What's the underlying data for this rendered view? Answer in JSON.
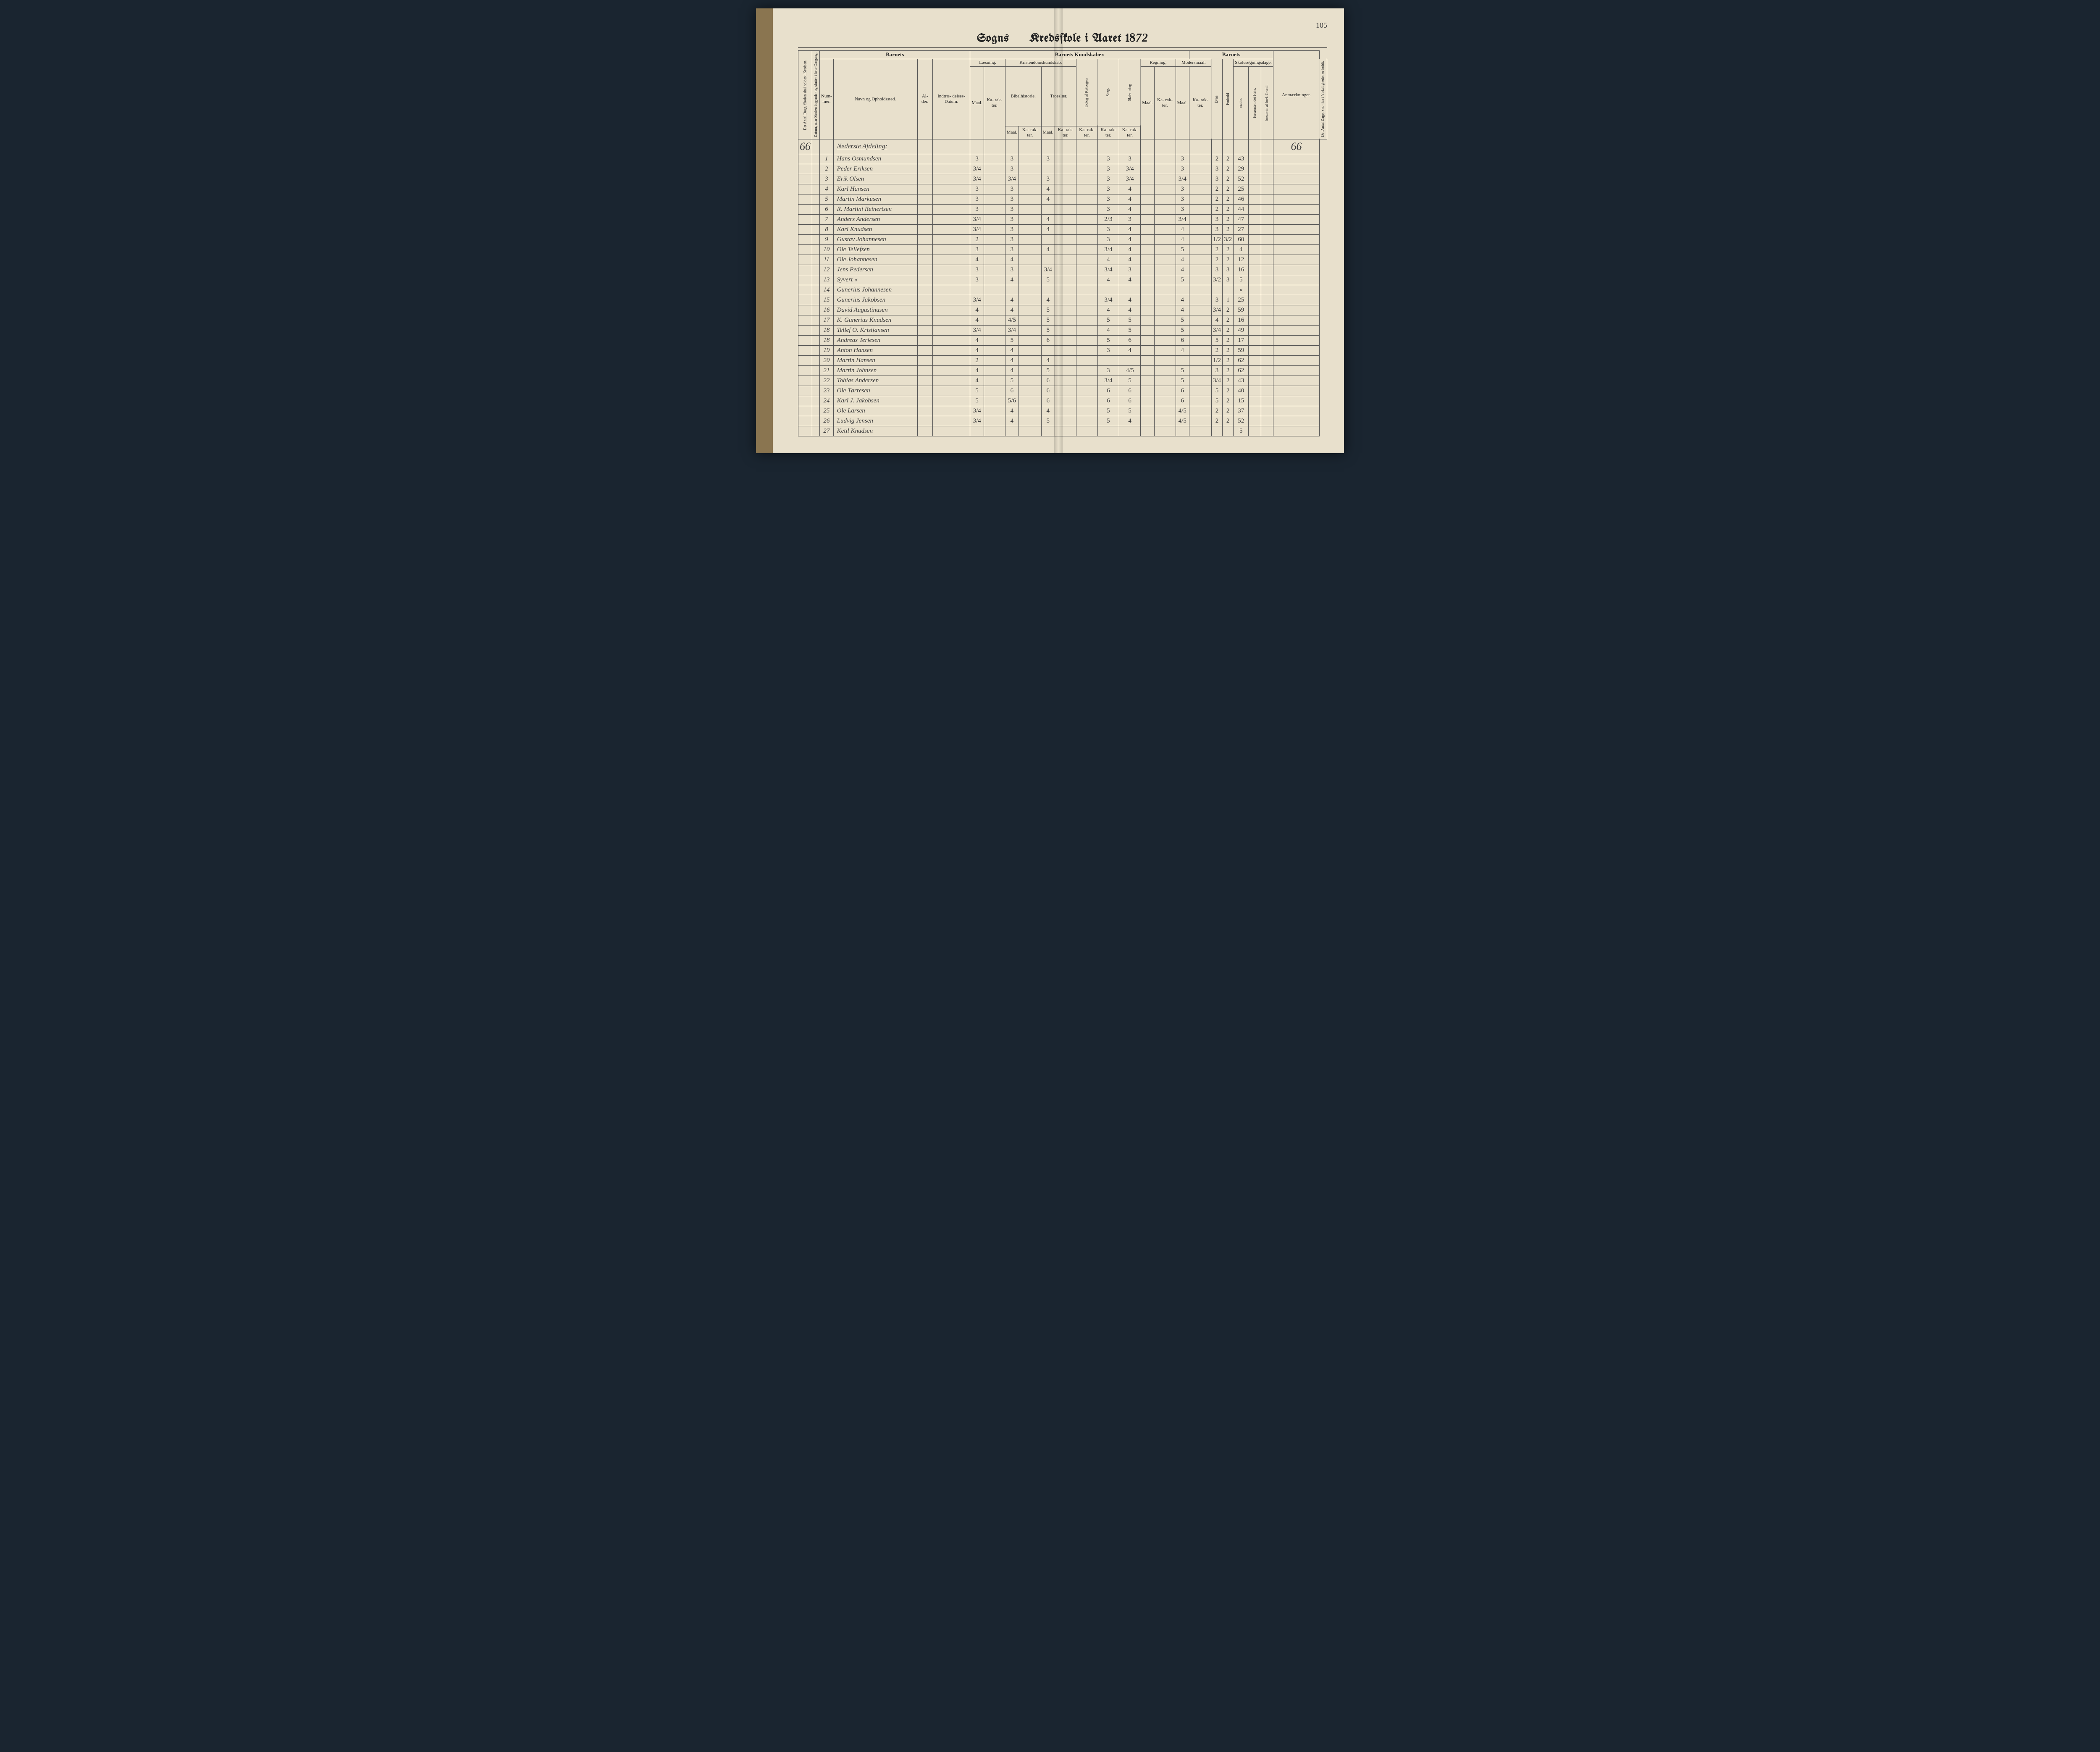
{
  "page_number": "105",
  "title_prefix": "Sogns",
  "title_main": "Kredsſkole i Aaret 18",
  "title_year_hand": "72",
  "group_headers": {
    "barnets1": "Barnets",
    "barnets_kundskaber": "Barnets Kundskaber.",
    "barnets2": "Barnets"
  },
  "sub_headers": {
    "laesning": "Læsning.",
    "kristendom": "Kristendomskundskab.",
    "regning": "Regning.",
    "modersmaal": "Modersmaal.",
    "skolesogning": "Skolesøgningsdage."
  },
  "col_headers": {
    "antal_dage": "Det Antal Dage, Skolen skal holdes i Kredsen.",
    "datum_omgang": "Datum, naar Skolen begynder og slutter i hver Omgang.",
    "nummer": "Num-\nmer.",
    "navn": "Navn og Opholdssted.",
    "alder": "Al-\nder.",
    "indtr": "Indtræ-\ndelses-\nDatum.",
    "maal": "Maal.",
    "karakter": "Ka-\nrak-\nter.",
    "bibel": "Bibelhistorie.",
    "troeslaere": "Troeslær.",
    "udtog": "Udtog af Katbogen.",
    "sang": "Sang.",
    "skrivning": "Skriv-\nning",
    "evne": "Evne.",
    "forhold": "Forhold",
    "modte": "mødte.",
    "forsomte1": "forsømte i det Hele.",
    "forsomte2": "forsømte af lovl. Grund.",
    "antal_dage2": "Det Antal Dage, Sko-\nlen i Virkeligheden er holdt.",
    "anm": "Anmærkninger."
  },
  "section_label": "Nederste Afdeling:",
  "left_margin_value": "66",
  "right_margin_value": "66",
  "rows": [
    {
      "n": "1",
      "name": "Hans Osmundsen",
      "maal_l": "3",
      "kar_l": "3",
      "bib": "3",
      "sang": "3",
      "skr": "3",
      "reg": "3",
      "evne": "2",
      "forhold": "2",
      "modte": "43"
    },
    {
      "n": "2",
      "name": "Peder Eriksen",
      "maal_l": "3/4",
      "kar_l": "3",
      "bib": "",
      "sang": "3",
      "skr": "3/4",
      "reg": "3",
      "evne": "3",
      "forhold": "2",
      "modte": "29"
    },
    {
      "n": "3",
      "name": "Erik Olsen",
      "maal_l": "3/4",
      "kar_l": "3/4",
      "bib": "3",
      "sang": "3",
      "skr": "3/4",
      "reg": "3/4",
      "evne": "3",
      "forhold": "2",
      "modte": "52"
    },
    {
      "n": "4",
      "name": "Karl Hansen",
      "maal_l": "3",
      "kar_l": "3",
      "bib": "4",
      "sang": "3",
      "skr": "4",
      "reg": "3",
      "evne": "2",
      "forhold": "2",
      "modte": "25"
    },
    {
      "n": "5",
      "name": "Martin Markusen",
      "maal_l": "3",
      "kar_l": "3",
      "bib": "4",
      "sang": "3",
      "skr": "4",
      "reg": "3",
      "evne": "2",
      "forhold": "2",
      "modte": "46"
    },
    {
      "n": "6",
      "name": "R. Martini Reinertsen",
      "maal_l": "3",
      "kar_l": "3",
      "bib": "",
      "sang": "3",
      "skr": "4",
      "reg": "3",
      "evne": "2",
      "forhold": "2",
      "modte": "44"
    },
    {
      "n": "7",
      "name": "Anders Andersen",
      "maal_l": "3/4",
      "kar_l": "3",
      "bib": "4",
      "sang": "2/3",
      "skr": "3",
      "reg": "3/4",
      "evne": "3",
      "forhold": "2",
      "modte": "47"
    },
    {
      "n": "8",
      "name": "Karl Knudsen",
      "maal_l": "3/4",
      "kar_l": "3",
      "bib": "4",
      "sang": "3",
      "skr": "4",
      "reg": "4",
      "evne": "3",
      "forhold": "2",
      "modte": "27"
    },
    {
      "n": "9",
      "name": "Gustav Johannesen",
      "maal_l": "2",
      "kar_l": "3",
      "bib": "",
      "sang": "3",
      "skr": "4",
      "reg": "4",
      "evne": "1/2",
      "forhold": "3/2",
      "modte": "60"
    },
    {
      "n": "10",
      "name": "Ole Tellefsen",
      "maal_l": "3",
      "kar_l": "3",
      "bib": "4",
      "sang": "3/4",
      "skr": "4",
      "reg": "5",
      "evne": "2",
      "forhold": "2",
      "modte": "4"
    },
    {
      "n": "11",
      "name": "Ole Johannesen",
      "maal_l": "4",
      "kar_l": "4",
      "bib": "",
      "sang": "4",
      "skr": "4",
      "reg": "4",
      "evne": "2",
      "forhold": "2",
      "modte": "12"
    },
    {
      "n": "12",
      "name": "Jens Pedersen",
      "maal_l": "3",
      "kar_l": "3",
      "bib": "3/4",
      "sang": "3/4",
      "skr": "3",
      "reg": "4",
      "evne": "3",
      "forhold": "3",
      "modte": "16"
    },
    {
      "n": "13",
      "name": "Syvert    «",
      "maal_l": "3",
      "kar_l": "4",
      "bib": "5",
      "sang": "4",
      "skr": "4",
      "reg": "5",
      "evne": "3/2",
      "forhold": "3",
      "modte": "5"
    },
    {
      "n": "14",
      "name": "Gunerius Johannesen",
      "maal_l": "",
      "kar_l": "",
      "bib": "",
      "sang": "",
      "skr": "",
      "reg": "",
      "evne": "",
      "forhold": "",
      "modte": "«"
    },
    {
      "n": "15",
      "name": "Gunerius Jakobsen",
      "maal_l": "3/4",
      "kar_l": "4",
      "bib": "4",
      "sang": "3/4",
      "skr": "4",
      "reg": "4",
      "evne": "3",
      "forhold": "1",
      "modte": "25"
    },
    {
      "n": "16",
      "name": "David Augustinusen",
      "maal_l": "4",
      "kar_l": "4",
      "bib": "5",
      "sang": "4",
      "skr": "4",
      "reg": "4",
      "evne": "3/4",
      "forhold": "2",
      "modte": "59"
    },
    {
      "n": "17",
      "name": "K. Gunerius Knudsen",
      "maal_l": "4",
      "kar_l": "4/5",
      "bib": "5",
      "sang": "5",
      "skr": "5",
      "reg": "5",
      "evne": "4",
      "forhold": "2",
      "modte": "16"
    },
    {
      "n": "18",
      "name": "Tellef O. Kristjansen",
      "maal_l": "3/4",
      "kar_l": "3/4",
      "bib": "5",
      "sang": "4",
      "skr": "5",
      "reg": "5",
      "evne": "3/4",
      "forhold": "2",
      "modte": "49"
    },
    {
      "n": "18",
      "name": "Andreas Terjesen",
      "maal_l": "4",
      "kar_l": "5",
      "bib": "6",
      "sang": "5",
      "skr": "6",
      "reg": "6",
      "evne": "5",
      "forhold": "2",
      "modte": "17"
    },
    {
      "n": "19",
      "name": "Anton Hansen",
      "maal_l": "4",
      "kar_l": "4",
      "bib": "",
      "sang": "3",
      "skr": "4",
      "reg": "4",
      "evne": "2",
      "forhold": "2",
      "modte": "59"
    },
    {
      "n": "20",
      "name": "Martin Hansen",
      "maal_l": "2",
      "kar_l": "4",
      "bib": "4",
      "sang": "",
      "skr": "",
      "reg": "",
      "evne": "1/2",
      "forhold": "2",
      "modte": "62"
    },
    {
      "n": "21",
      "name": "Martin Johnsen",
      "maal_l": "4",
      "kar_l": "4",
      "bib": "5",
      "sang": "3",
      "skr": "4/5",
      "reg": "5",
      "evne": "3",
      "forhold": "2",
      "modte": "62"
    },
    {
      "n": "22",
      "name": "Tobias Andersen",
      "maal_l": "4",
      "kar_l": "5",
      "bib": "6",
      "sang": "3/4",
      "skr": "5",
      "reg": "5",
      "evne": "3/4",
      "forhold": "2",
      "modte": "43"
    },
    {
      "n": "23",
      "name": "Ole Tørresen",
      "maal_l": "5",
      "kar_l": "6",
      "bib": "6",
      "sang": "6",
      "skr": "6",
      "reg": "6",
      "evne": "5",
      "forhold": "2",
      "modte": "40"
    },
    {
      "n": "24",
      "name": "Karl J. Jakobsen",
      "maal_l": "5",
      "kar_l": "5/6",
      "bib": "6",
      "sang": "6",
      "skr": "6",
      "reg": "6",
      "evne": "5",
      "forhold": "2",
      "modte": "15"
    },
    {
      "n": "25",
      "name": "Ole Larsen",
      "maal_l": "3/4",
      "kar_l": "4",
      "bib": "4",
      "sang": "5",
      "skr": "5",
      "reg": "4/5",
      "evne": "2",
      "forhold": "2",
      "modte": "37"
    },
    {
      "n": "26",
      "name": "Ludvig Jensen",
      "maal_l": "3/4",
      "kar_l": "4",
      "bib": "5",
      "sang": "5",
      "skr": "4",
      "reg": "4/5",
      "evne": "2",
      "forhold": "2",
      "modte": "52"
    },
    {
      "n": "27",
      "name": "Ketil Knudsen",
      "maal_l": "",
      "kar_l": "",
      "bib": "",
      "sang": "",
      "skr": "",
      "reg": "",
      "evne": "",
      "forhold": "",
      "modte": "5"
    }
  ]
}
